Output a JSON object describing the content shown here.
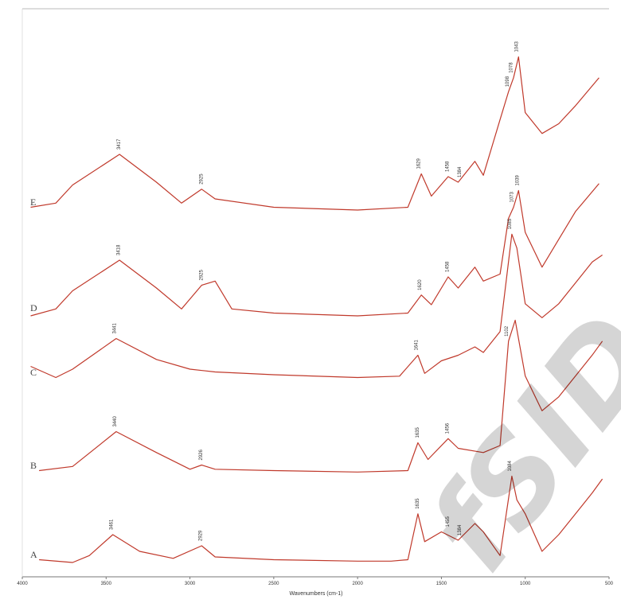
{
  "chart_data": {
    "type": "line",
    "title": "",
    "xlabel": "Wavenumbers (cm-1)",
    "ylabel": "",
    "xlim": [
      4000,
      500
    ],
    "x_direction": "reversed",
    "grid": false,
    "x_ticks": [
      "4000",
      "3500",
      "3000",
      "2500",
      "2000",
      "1500",
      "1000",
      "500"
    ],
    "line_color": "#c0392b",
    "series": [
      {
        "name": "A",
        "points": [
          [
            3900,
            0.02
          ],
          [
            3700,
            0.0
          ],
          [
            3600,
            0.05
          ],
          [
            3460,
            0.2
          ],
          [
            3300,
            0.08
          ],
          [
            3100,
            0.03
          ],
          [
            2930,
            0.12
          ],
          [
            2850,
            0.04
          ],
          [
            2500,
            0.02
          ],
          [
            2000,
            0.01
          ],
          [
            1800,
            0.01
          ],
          [
            1700,
            0.02
          ],
          [
            1640,
            0.35
          ],
          [
            1600,
            0.15
          ],
          [
            1500,
            0.22
          ],
          [
            1400,
            0.16
          ],
          [
            1300,
            0.28
          ],
          [
            1250,
            0.22
          ],
          [
            1150,
            0.05
          ],
          [
            1080,
            0.62
          ],
          [
            1050,
            0.45
          ],
          [
            1000,
            0.35
          ],
          [
            900,
            0.08
          ],
          [
            800,
            0.2
          ],
          [
            700,
            0.35
          ],
          [
            600,
            0.5
          ],
          [
            540,
            0.6
          ]
        ],
        "peak_labels": [
          "3461",
          "2929",
          "1635",
          "1455",
          "1384",
          "1084"
        ]
      },
      {
        "name": "B",
        "points": [
          [
            3900,
            0.02
          ],
          [
            3700,
            0.05
          ],
          [
            3440,
            0.3
          ],
          [
            3200,
            0.15
          ],
          [
            3000,
            0.03
          ],
          [
            2930,
            0.06
          ],
          [
            2850,
            0.03
          ],
          [
            2500,
            0.02
          ],
          [
            2000,
            0.01
          ],
          [
            1700,
            0.02
          ],
          [
            1640,
            0.22
          ],
          [
            1580,
            0.1
          ],
          [
            1460,
            0.25
          ],
          [
            1400,
            0.18
          ],
          [
            1250,
            0.15
          ],
          [
            1150,
            0.2
          ],
          [
            1100,
            0.95
          ],
          [
            1060,
            1.1
          ],
          [
            1000,
            0.7
          ],
          [
            900,
            0.45
          ],
          [
            800,
            0.55
          ],
          [
            700,
            0.7
          ],
          [
            600,
            0.85
          ],
          [
            540,
            0.95
          ]
        ],
        "peak_labels": [
          "3440",
          "2926",
          "1635",
          "1456",
          "1102"
        ]
      },
      {
        "name": "C",
        "points": [
          [
            3950,
            0.1
          ],
          [
            3800,
            0.02
          ],
          [
            3700,
            0.08
          ],
          [
            3440,
            0.3
          ],
          [
            3200,
            0.15
          ],
          [
            3000,
            0.08
          ],
          [
            2850,
            0.06
          ],
          [
            2500,
            0.04
          ],
          [
            2000,
            0.02
          ],
          [
            1750,
            0.03
          ],
          [
            1640,
            0.18
          ],
          [
            1600,
            0.05
          ],
          [
            1500,
            0.14
          ],
          [
            1400,
            0.18
          ],
          [
            1300,
            0.24
          ],
          [
            1250,
            0.2
          ],
          [
            1150,
            0.35
          ],
          [
            1080,
            1.05
          ],
          [
            1050,
            0.95
          ],
          [
            1000,
            0.55
          ],
          [
            900,
            0.45
          ],
          [
            800,
            0.55
          ],
          [
            700,
            0.7
          ],
          [
            600,
            0.85
          ],
          [
            540,
            0.9
          ]
        ],
        "peak_labels": [
          "3441",
          "1641",
          "1085"
        ]
      },
      {
        "name": "D",
        "points": [
          [
            3950,
            0.0
          ],
          [
            3800,
            0.05
          ],
          [
            3700,
            0.18
          ],
          [
            3420,
            0.4
          ],
          [
            3200,
            0.2
          ],
          [
            3050,
            0.05
          ],
          [
            2930,
            0.22
          ],
          [
            2850,
            0.25
          ],
          [
            2750,
            0.05
          ],
          [
            2500,
            0.02
          ],
          [
            2000,
            0.0
          ],
          [
            1700,
            0.02
          ],
          [
            1620,
            0.15
          ],
          [
            1560,
            0.08
          ],
          [
            1460,
            0.28
          ],
          [
            1400,
            0.2
          ],
          [
            1300,
            0.35
          ],
          [
            1250,
            0.25
          ],
          [
            1150,
            0.3
          ],
          [
            1100,
            0.7
          ],
          [
            1070,
            0.78
          ],
          [
            1040,
            0.9
          ],
          [
            1000,
            0.6
          ],
          [
            900,
            0.35
          ],
          [
            800,
            0.55
          ],
          [
            700,
            0.75
          ],
          [
            560,
            0.95
          ]
        ],
        "peak_labels": [
          "3418",
          "2925",
          "1620",
          "1458",
          "1073",
          "1039"
        ]
      },
      {
        "name": "E",
        "points": [
          [
            3950,
            0.02
          ],
          [
            3800,
            0.05
          ],
          [
            3700,
            0.18
          ],
          [
            3420,
            0.4
          ],
          [
            3200,
            0.2
          ],
          [
            3050,
            0.05
          ],
          [
            2930,
            0.15
          ],
          [
            2850,
            0.08
          ],
          [
            2500,
            0.02
          ],
          [
            2000,
            0.0
          ],
          [
            1700,
            0.02
          ],
          [
            1620,
            0.26
          ],
          [
            1560,
            0.1
          ],
          [
            1460,
            0.24
          ],
          [
            1400,
            0.2
          ],
          [
            1300,
            0.35
          ],
          [
            1250,
            0.25
          ],
          [
            1150,
            0.65
          ],
          [
            1100,
            0.85
          ],
          [
            1070,
            0.95
          ],
          [
            1040,
            1.1
          ],
          [
            1000,
            0.7
          ],
          [
            900,
            0.55
          ],
          [
            800,
            0.62
          ],
          [
            700,
            0.75
          ],
          [
            560,
            0.95
          ]
        ],
        "peak_labels": [
          "3417",
          "2925",
          "1629",
          "1458",
          "1384",
          "1098",
          "1078",
          "1043"
        ]
      }
    ]
  }
}
